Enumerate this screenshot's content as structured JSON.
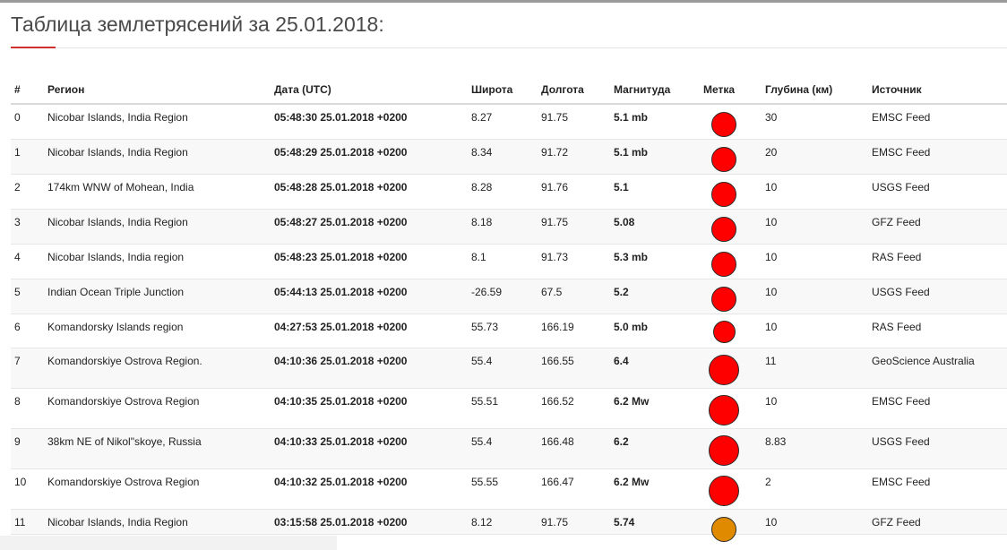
{
  "page": {
    "title": "Таблица землетрясений за 25.01.2018:"
  },
  "table": {
    "headers": {
      "num": "#",
      "region": "Регион",
      "date": "Дата (UTC)",
      "lat": "Широта",
      "lon": "Долгота",
      "mag": "Магнитуда",
      "marker": "Метка",
      "depth": "Глубина (км)",
      "source": "Источник"
    },
    "rows": [
      {
        "num": "0",
        "region": "Nicobar Islands, India Region",
        "date": "05:48:30 25.01.2018 +0200",
        "lat": "8.27",
        "lon": "91.75",
        "mag": "5.1 mb",
        "depth": "30",
        "source": "EMSC Feed",
        "marker_color": "#ff0000",
        "marker_size": "medium"
      },
      {
        "num": "1",
        "region": "Nicobar Islands, India Region",
        "date": "05:48:29 25.01.2018 +0200",
        "lat": "8.34",
        "lon": "91.72",
        "mag": "5.1 mb",
        "depth": "20",
        "source": "EMSC Feed",
        "marker_color": "#ff0000",
        "marker_size": "medium"
      },
      {
        "num": "2",
        "region": "174km WNW of Mohean, India",
        "date": "05:48:28 25.01.2018 +0200",
        "lat": "8.28",
        "lon": "91.76",
        "mag": "5.1",
        "depth": "10",
        "source": "USGS Feed",
        "marker_color": "#ff0000",
        "marker_size": "medium"
      },
      {
        "num": "3",
        "region": "Nicobar Islands, India Region",
        "date": "05:48:27 25.01.2018 +0200",
        "lat": "8.18",
        "lon": "91.75",
        "mag": "5.08",
        "depth": "10",
        "source": "GFZ Feed",
        "marker_color": "#ff0000",
        "marker_size": "medium"
      },
      {
        "num": "4",
        "region": "Nicobar Islands, India region",
        "date": "05:48:23 25.01.2018 +0200",
        "lat": "8.1",
        "lon": "91.73",
        "mag": "5.3 mb",
        "depth": "10",
        "source": "RAS Feed",
        "marker_color": "#ff0000",
        "marker_size": "medium"
      },
      {
        "num": "5",
        "region": "Indian Ocean Triple Junction",
        "date": "05:44:13 25.01.2018 +0200",
        "lat": "-26.59",
        "lon": "67.5",
        "mag": "5.2",
        "depth": "10",
        "source": "USGS Feed",
        "marker_color": "#ff0000",
        "marker_size": "medium"
      },
      {
        "num": "6",
        "region": "Komandorsky Islands region",
        "date": "04:27:53 25.01.2018 +0200",
        "lat": "55.73",
        "lon": "166.19",
        "mag": "5.0 mb",
        "depth": "10",
        "source": "RAS Feed",
        "marker_color": "#ff0000",
        "marker_size": "small"
      },
      {
        "num": "7",
        "region": "Komandorskiye Ostrova Region.",
        "date": "04:10:36 25.01.2018 +0200",
        "lat": "55.4",
        "lon": "166.55",
        "mag": "6.4",
        "depth": "11",
        "source": "GeoScience Australia",
        "marker_color": "#ff0000",
        "marker_size": "large"
      },
      {
        "num": "8",
        "region": "Komandorskiye Ostrova Region",
        "date": "04:10:35 25.01.2018 +0200",
        "lat": "55.51",
        "lon": "166.52",
        "mag": "6.2 Mw",
        "depth": "10",
        "source": "EMSC Feed",
        "marker_color": "#ff0000",
        "marker_size": "large"
      },
      {
        "num": "9",
        "region": "38km NE of Nikol\"skoye, Russia",
        "date": "04:10:33 25.01.2018 +0200",
        "lat": "55.4",
        "lon": "166.48",
        "mag": "6.2",
        "depth": "8.83",
        "source": "USGS Feed",
        "marker_color": "#ff0000",
        "marker_size": "large"
      },
      {
        "num": "10",
        "region": "Komandorskiye Ostrova Region",
        "date": "04:10:32 25.01.2018 +0200",
        "lat": "55.55",
        "lon": "166.47",
        "mag": "6.2 Mw",
        "depth": "2",
        "source": "EMSC Feed",
        "marker_color": "#ff0000",
        "marker_size": "large"
      },
      {
        "num": "11",
        "region": "Nicobar Islands, India Region",
        "date": "03:15:58 25.01.2018 +0200",
        "lat": "8.12",
        "lon": "91.75",
        "mag": "5.74",
        "depth": "10",
        "source": "GFZ Feed",
        "marker_color": "#e08a00",
        "marker_size": "medium"
      }
    ]
  }
}
